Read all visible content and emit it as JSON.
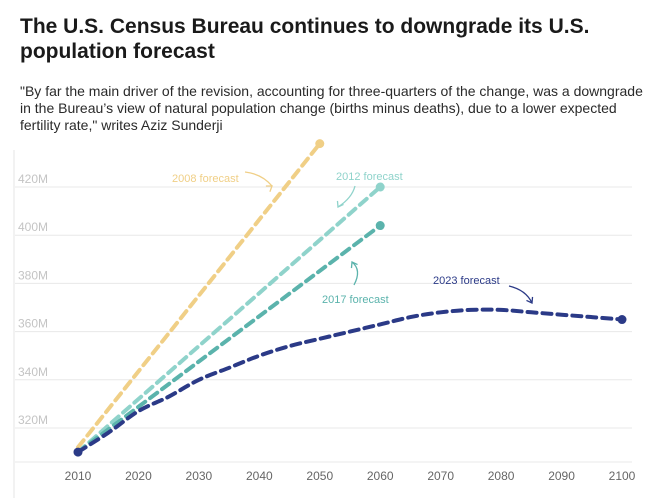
{
  "header": {
    "title": "The U.S. Census Bureau continues to downgrade its U.S. population forecast",
    "subtitle": "\"By far the main driver of the revision, accounting for three-quarters of the change, was a downgrade in the Bureau’s view of natural population change (births minus deaths), due to a lower expected fertility rate,\" writes Aziz Sunderji"
  },
  "chart_data": {
    "type": "line",
    "title": "The U.S. Census Bureau continues to downgrade its U.S. population forecast",
    "xlabel": "",
    "ylabel": "",
    "xlim": [
      2010,
      2100
    ],
    "ylim": [
      310,
      440
    ],
    "grid": true,
    "x_ticks": [
      2010,
      2020,
      2030,
      2040,
      2050,
      2060,
      2070,
      2080,
      2090,
      2100
    ],
    "x_tick_labels": [
      "2010",
      "2020",
      "2030",
      "2040",
      "2050",
      "2060",
      "2070",
      "2080",
      "2090",
      "2100"
    ],
    "y_ticks": [
      320,
      340,
      360,
      380,
      400,
      420
    ],
    "y_tick_labels": [
      "320M",
      "340M",
      "360M",
      "380M",
      "400M",
      "420M"
    ],
    "series": [
      {
        "name": "2008 forecast",
        "color": "#f0cf86",
        "x": [
          2010,
          2050
        ],
        "y": [
          312,
          438
        ]
      },
      {
        "name": "2012 forecast",
        "color": "#8fd3cb",
        "x": [
          2010,
          2060
        ],
        "y": [
          310,
          420
        ]
      },
      {
        "name": "2017 forecast",
        "color": "#5bb3ac",
        "x": [
          2010,
          2060
        ],
        "y": [
          310,
          404
        ]
      },
      {
        "name": "2023 forecast",
        "color": "#2b3a87",
        "x": [
          2010,
          2015,
          2020,
          2025,
          2030,
          2035,
          2040,
          2045,
          2050,
          2055,
          2060,
          2065,
          2070,
          2075,
          2080,
          2085,
          2090,
          2095,
          2100
        ],
        "y": [
          310,
          318,
          327,
          333,
          340,
          345,
          350,
          354,
          357,
          360,
          363,
          366,
          368,
          369,
          369,
          368,
          367,
          366,
          365
        ]
      }
    ],
    "annotations": [
      {
        "text": "2008 forecast",
        "series": 0
      },
      {
        "text": "2012 forecast",
        "series": 1
      },
      {
        "text": "2017 forecast",
        "series": 2
      },
      {
        "text": "2023 forecast",
        "series": 3
      }
    ]
  }
}
